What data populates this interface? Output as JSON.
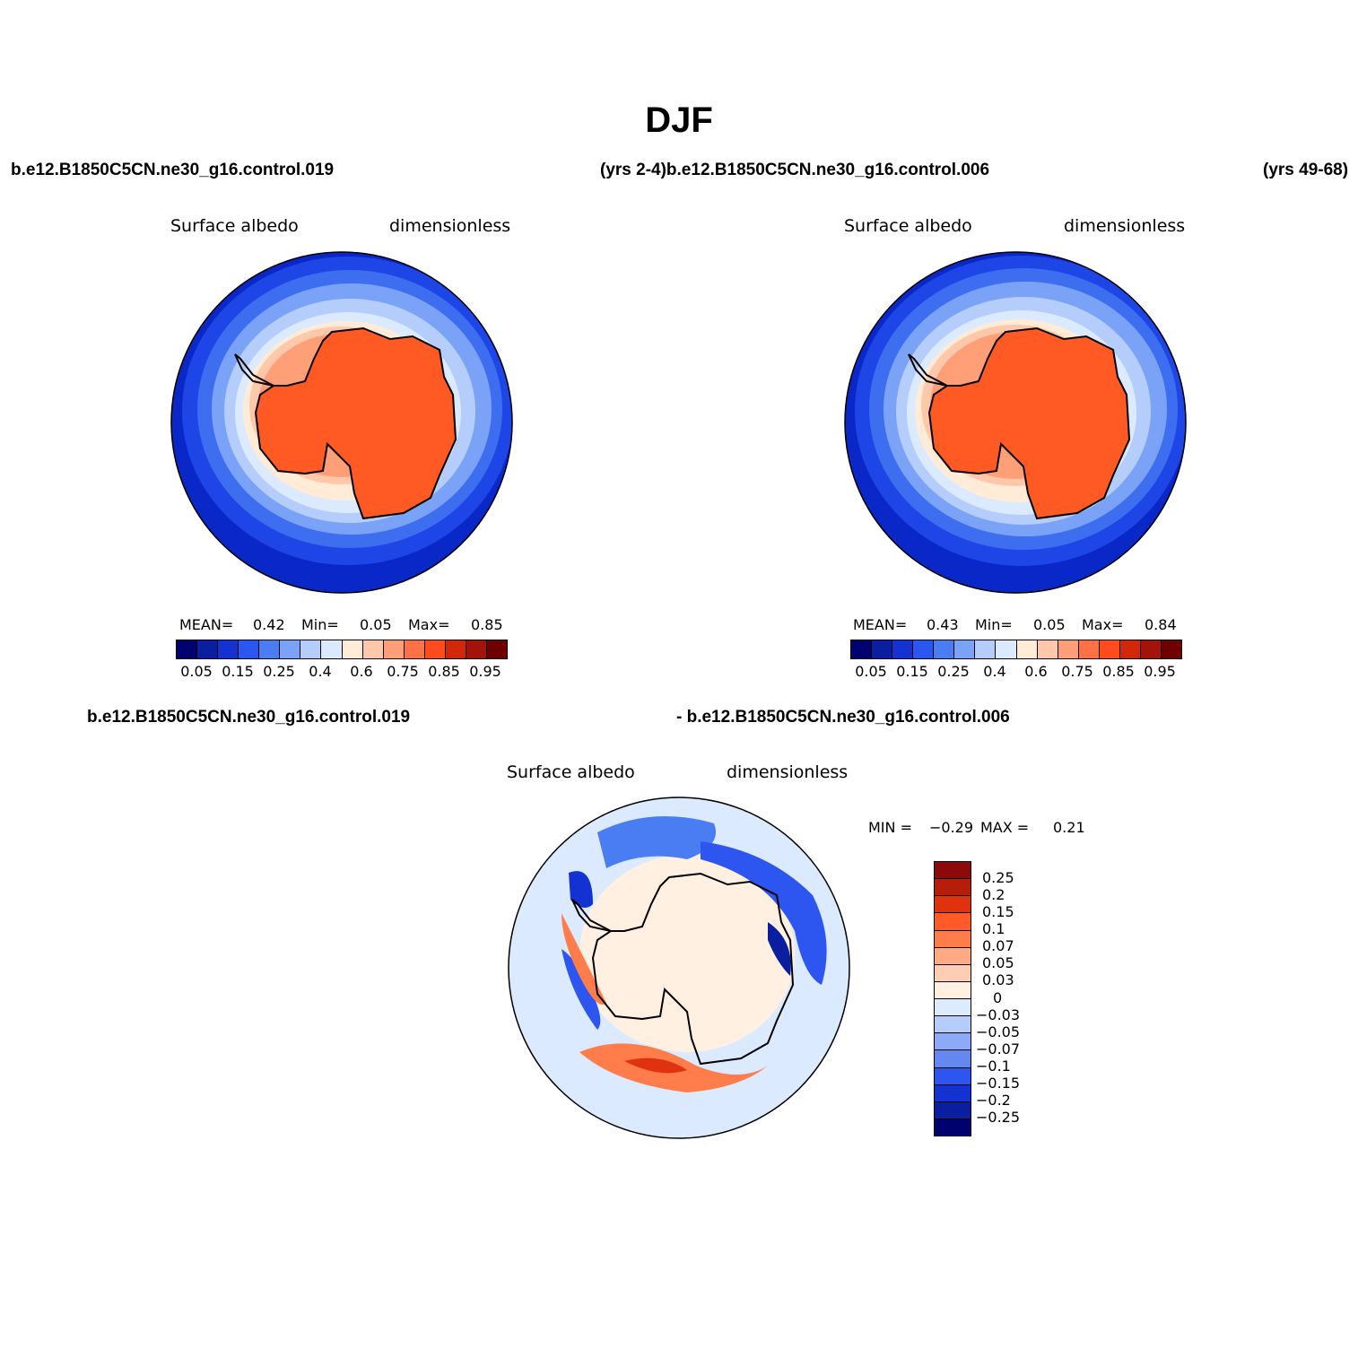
{
  "title": "DJF",
  "top_left_case": "b.e12.B1850C5CN.ne30_g16.control.019",
  "top_middle": "(yrs 2-4)b.e12.B1850C5CN.ne30_g16.control.006",
  "top_right": "(yrs 49-68)",
  "bottom_case_left": "b.e12.B1850C5CN.ne30_g16.control.019",
  "bottom_case_right": "- b.e12.B1850C5CN.ne30_g16.control.006",
  "panels": [
    {
      "variable": "Surface albedo",
      "units": "dimensionless",
      "stats": {
        "mean_label": "MEAN=",
        "mean": "0.42",
        "min_label": "Min=",
        "min": "0.05",
        "max_label": "Max=",
        "max": "0.85"
      }
    },
    {
      "variable": "Surface albedo",
      "units": "dimensionless",
      "stats": {
        "mean_label": "MEAN=",
        "mean": "0.43",
        "min_label": "Min=",
        "min": "0.05",
        "max_label": "Max=",
        "max": "0.84"
      }
    },
    {
      "variable": "Surface albedo",
      "units": "dimensionless",
      "stats": {
        "min_label": "MIN =",
        "min": "−0.29",
        "max_label": "MAX =",
        "max": "0.21"
      }
    }
  ],
  "colorbar_abs": {
    "colors": [
      "#00006e",
      "#0a1ea0",
      "#1432d2",
      "#2b57f0",
      "#4a7cf2",
      "#7aa2f7",
      "#b4cdfa",
      "#dceaff",
      "#ffebd6",
      "#ffc8aa",
      "#ff9f78",
      "#ff7046",
      "#ff4b1e",
      "#d2280a",
      "#a0140a",
      "#6e0000"
    ],
    "labels": [
      "0.05",
      "0.15",
      "0.25",
      "0.4",
      "0.6",
      "0.75",
      "0.85",
      "0.95"
    ]
  },
  "colorbar_diff": {
    "colors_top_to_bottom": [
      "#8c0a0a",
      "#b41e0a",
      "#e1320f",
      "#ff5a28",
      "#ff7d4b",
      "#ffaa82",
      "#ffcdb4",
      "#fff0e1",
      "#dcebff",
      "#b4cdfa",
      "#8caaf5",
      "#6487f0",
      "#2d55f0",
      "#1432d2",
      "#0a1ea0",
      "#00006e"
    ],
    "labels": [
      "0.25",
      "0.2",
      "0.15",
      "0.1",
      "0.07",
      "0.05",
      "0.03",
      "0",
      "−0.03",
      "−0.05",
      "−0.07",
      "−0.1",
      "−0.15",
      "−0.2",
      "−0.25"
    ]
  }
}
